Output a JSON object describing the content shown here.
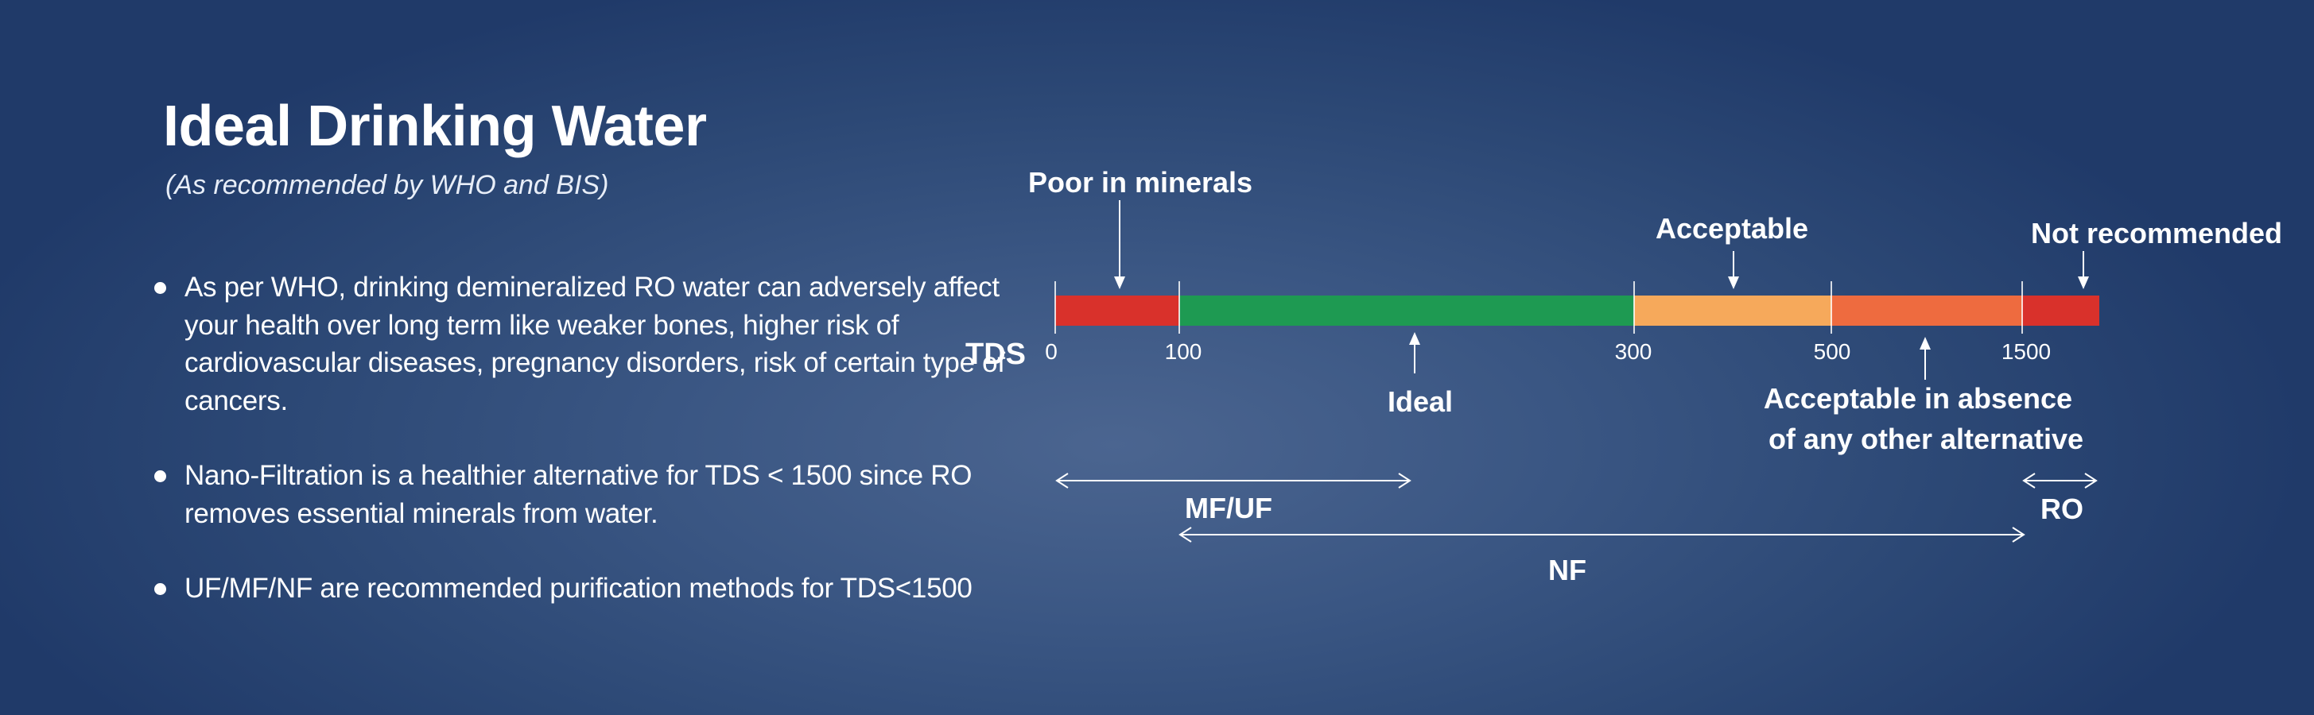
{
  "header": {
    "title": "Ideal Drinking Water",
    "subtitle": "(As recommended by WHO and BIS)"
  },
  "bullets": [
    "As per WHO, drinking demineralized RO water can adversely affect your health over long term like weaker bones, higher risk of cardiovascular diseases, pregnancy disorders, risk of certain type of cancers.",
    "Nano-Filtration is a healthier alternative for TDS < 1500 since RO removes essential minerals from water.",
    "UF/MF/NF are recommended purification methods for TDS<1500"
  ],
  "scale": {
    "axis_label": "TDS",
    "ticks": [
      "0",
      "100",
      "300",
      "500",
      "1500"
    ],
    "segments": [
      {
        "range": "0-100",
        "color": "#d9312b"
      },
      {
        "range": "100-300",
        "color": "#1e9a52"
      },
      {
        "range": "300-500",
        "color": "#f6a95b"
      },
      {
        "range": "500-1500",
        "color": "#ee6b3f"
      },
      {
        "range": "above 1500",
        "color": "#d9312b"
      }
    ],
    "labels": {
      "poor": "Poor in minerals",
      "acceptable": "Acceptable",
      "not_recommended": "Not recommended",
      "ideal": "Ideal",
      "absence_line1": "Acceptable in absence",
      "absence_line2": "of any other alternative"
    }
  },
  "methods": {
    "mfuf": "MF/UF",
    "ro": "RO",
    "nf": "NF"
  },
  "colors": {
    "background": "#2c4875",
    "text": "#ffffff"
  }
}
